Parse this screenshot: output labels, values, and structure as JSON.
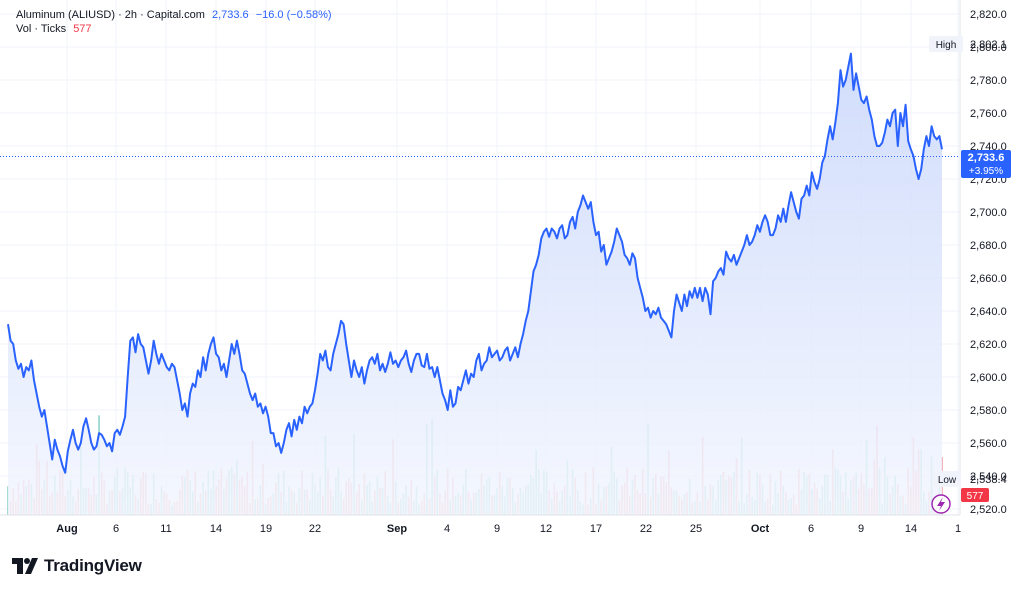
{
  "legend": {
    "title": "Aluminum (ALIUSD) · 2h · Capital.com",
    "last": "2,733.6",
    "change": "−16.0 (−0.58%)",
    "vol_label": "Vol · Ticks",
    "vol_value": "577"
  },
  "brand": {
    "name": "TradingView",
    "logo_icon": "tradingview-logo-icon"
  },
  "badges": {
    "high_label": "High",
    "high_value": "2,802.1",
    "low_label": "Low",
    "low_value": "2,538.4",
    "price_value": "2,733.6",
    "price_change": "+3.95%",
    "vol_value": "577",
    "lightning_icon": "lightning-icon"
  },
  "colors": {
    "line": "#2962ff",
    "area_top": "#c9d7fb",
    "area_bottom": "#f3f6fe",
    "vol_up": "#8ed3cb",
    "vol_down": "#f5a3a8",
    "price_badge": "#2962ff",
    "vol_badge": "#f23645",
    "grid": "#f0f3fa",
    "text": "#131722"
  },
  "chart_data": {
    "type": "area",
    "x_tick_labels": [
      "Aug",
      "6",
      "11",
      "14",
      "19",
      "22",
      "Sep",
      "4",
      "9",
      "12",
      "17",
      "22",
      "25",
      "Oct",
      "6",
      "9",
      "14",
      "1"
    ],
    "y_tick_labels": [
      "2,520.0",
      "2,540.0",
      "2,560.0",
      "2,580.0",
      "2,600.0",
      "2,620.0",
      "2,640.0",
      "2,660.0",
      "2,680.0",
      "2,700.0",
      "2,720.0",
      "2,740.0",
      "2,760.0",
      "2,780.0",
      "2,800.0",
      "2,820.0"
    ],
    "ylim": [
      2516,
      2822
    ],
    "grid": true,
    "series": [
      {
        "values": [
          2632,
          2622,
          2620,
          2610,
          2605,
          2608,
          2600,
          2606,
          2604,
          2610,
          2598,
          2590,
          2582,
          2576,
          2580,
          2570,
          2560,
          2550,
          2562,
          2556,
          2552,
          2546,
          2542,
          2555,
          2562,
          2568,
          2560,
          2556,
          2560,
          2570,
          2575,
          2568,
          2560,
          2556,
          2558,
          2566,
          2565,
          2562,
          2558,
          2560,
          2555,
          2566,
          2568,
          2565,
          2570,
          2576,
          2600,
          2622,
          2624,
          2615,
          2626,
          2620,
          2618,
          2610,
          2602,
          2610,
          2622,
          2614,
          2608,
          2614,
          2610,
          2606,
          2604,
          2608,
          2606,
          2598,
          2590,
          2580,
          2584,
          2576,
          2590,
          2596,
          2594,
          2604,
          2600,
          2612,
          2604,
          2614,
          2620,
          2624,
          2614,
          2612,
          2604,
          2608,
          2600,
          2610,
          2620,
          2614,
          2622,
          2614,
          2604,
          2602,
          2596,
          2590,
          2586,
          2590,
          2582,
          2584,
          2578,
          2582,
          2576,
          2566,
          2566,
          2558,
          2560,
          2554,
          2560,
          2568,
          2572,
          2564,
          2574,
          2568,
          2576,
          2572,
          2582,
          2578,
          2582,
          2584,
          2592,
          2602,
          2614,
          2610,
          2616,
          2606,
          2604,
          2614,
          2620,
          2626,
          2634,
          2632,
          2620,
          2610,
          2600,
          2610,
          2604,
          2600,
          2606,
          2596,
          2604,
          2610,
          2612,
          2608,
          2614,
          2604,
          2608,
          2603,
          2608,
          2615,
          2608,
          2610,
          2606,
          2610,
          2612,
          2616,
          2608,
          2603,
          2610,
          2614,
          2614,
          2607,
          2606,
          2614,
          2605,
          2606,
          2600,
          2606,
          2598,
          2590,
          2586,
          2580,
          2592,
          2582,
          2584,
          2594,
          2592,
          2598,
          2604,
          2596,
          2602,
          2600,
          2610,
          2614,
          2604,
          2608,
          2610,
          2618,
          2612,
          2614,
          2616,
          2610,
          2612,
          2616,
          2618,
          2610,
          2614,
          2618,
          2612,
          2620,
          2626,
          2634,
          2640,
          2652,
          2664,
          2668,
          2674,
          2684,
          2688,
          2690,
          2685,
          2690,
          2688,
          2684,
          2690,
          2692,
          2684,
          2686,
          2694,
          2697,
          2690,
          2700,
          2704,
          2710,
          2706,
          2702,
          2706,
          2694,
          2686,
          2688,
          2676,
          2680,
          2668,
          2672,
          2676,
          2682,
          2690,
          2686,
          2682,
          2674,
          2672,
          2668,
          2675,
          2672,
          2660,
          2654,
          2648,
          2640,
          2642,
          2636,
          2640,
          2638,
          2642,
          2636,
          2634,
          2632,
          2628,
          2624,
          2640,
          2650,
          2645,
          2640,
          2650,
          2643,
          2652,
          2648,
          2654,
          2648,
          2654,
          2646,
          2654,
          2650,
          2638,
          2658,
          2660,
          2664,
          2666,
          2662,
          2676,
          2672,
          2670,
          2674,
          2668,
          2672,
          2676,
          2680,
          2686,
          2680,
          2682,
          2686,
          2692,
          2688,
          2694,
          2698,
          2694,
          2686,
          2686,
          2690,
          2698,
          2694,
          2702,
          2694,
          2704,
          2712,
          2706,
          2700,
          2696,
          2708,
          2710,
          2716,
          2710,
          2724,
          2718,
          2714,
          2720,
          2730,
          2734,
          2744,
          2752,
          2744,
          2754,
          2766,
          2786,
          2776,
          2780,
          2788,
          2796,
          2774,
          2784,
          2776,
          2768,
          2766,
          2770,
          2762,
          2756,
          2746,
          2740,
          2740,
          2742,
          2748,
          2756,
          2752,
          2760,
          2762,
          2740,
          2760,
          2752,
          2765,
          2743,
          2738,
          2734,
          2726,
          2720,
          2726,
          2738,
          2746,
          2740,
          2752,
          2746,
          2744,
          2746,
          2738
        ]
      },
      {
        "name": "Vol · Ticks",
        "last": 577
      }
    ]
  }
}
